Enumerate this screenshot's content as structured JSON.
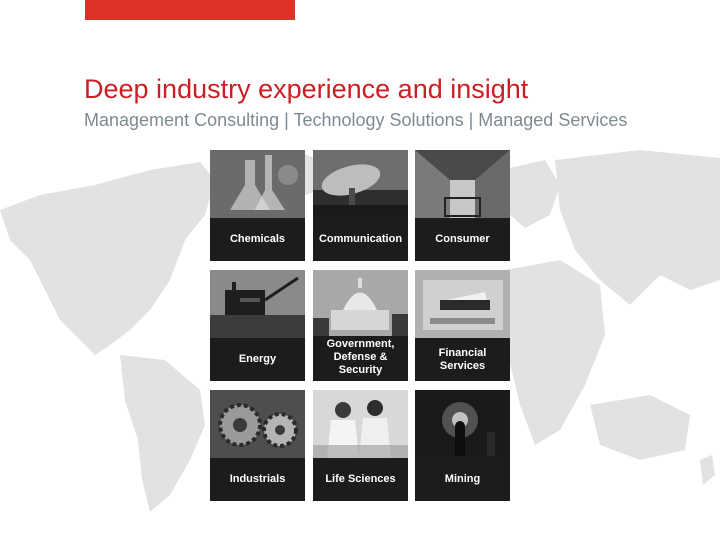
{
  "header": {
    "title": "Deep industry experience and insight",
    "subtitle": "Management Consulting | Technology Solutions | Managed Services",
    "accent_color": "#e03129",
    "title_color": "#cc1f25"
  },
  "background": {
    "image": "world-map-icon",
    "color": "#dcdcdc"
  },
  "industries": [
    {
      "label": "Chemicals",
      "icon": "chemicals-photo"
    },
    {
      "label": "Communication",
      "icon": "communication-photo"
    },
    {
      "label": "Consumer",
      "icon": "consumer-photo"
    },
    {
      "label": "Energy",
      "icon": "energy-photo"
    },
    {
      "label": "Government,\nDefense &\nSecurity",
      "icon": "government-photo"
    },
    {
      "label": "Financial\nServices",
      "icon": "financial-photo"
    },
    {
      "label": "Industrials",
      "icon": "industrials-photo"
    },
    {
      "label": "Life Sciences",
      "icon": "life-sciences-photo"
    },
    {
      "label": "Mining",
      "icon": "mining-photo"
    }
  ]
}
